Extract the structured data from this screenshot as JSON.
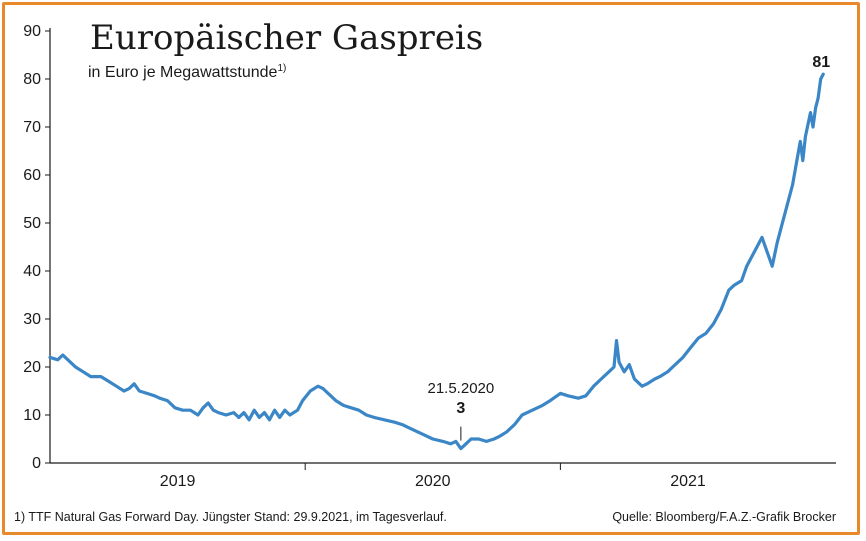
{
  "frame_color": "#e8892b",
  "chart_data": {
    "type": "line",
    "title": "Europäischer Gaspreis",
    "subtitle": "in Euro je Megawattstunde",
    "subtitle_footnote_mark": "1)",
    "ylabel": "",
    "xlabel": "",
    "ylim": [
      0,
      90
    ],
    "y_ticks": [
      "0",
      "10",
      "20",
      "30",
      "40",
      "50",
      "60",
      "70",
      "80",
      "90"
    ],
    "x_domain": [
      2018.67,
      2021.75
    ],
    "x_dividers": [
      2019.67,
      2020.67
    ],
    "x_labels": [
      {
        "label": "2019",
        "x": 2019.17
      },
      {
        "label": "2020",
        "x": 2020.17
      },
      {
        "label": "2021",
        "x": 2021.17
      }
    ],
    "line_color": "#3a86c6",
    "series": [
      {
        "name": "TTF Natural Gas Forward Day",
        "points": [
          [
            2018.67,
            22
          ],
          [
            2018.7,
            21.5
          ],
          [
            2018.72,
            22.5
          ],
          [
            2018.75,
            21
          ],
          [
            2018.77,
            20
          ],
          [
            2018.8,
            19
          ],
          [
            2018.83,
            18
          ],
          [
            2018.87,
            18
          ],
          [
            2018.9,
            17
          ],
          [
            2018.93,
            16
          ],
          [
            2018.96,
            15
          ],
          [
            2018.98,
            15.5
          ],
          [
            2019.0,
            16.5
          ],
          [
            2019.02,
            15
          ],
          [
            2019.05,
            14.5
          ],
          [
            2019.08,
            14
          ],
          [
            2019.1,
            13.5
          ],
          [
            2019.13,
            13
          ],
          [
            2019.16,
            11.5
          ],
          [
            2019.19,
            11
          ],
          [
            2019.22,
            11
          ],
          [
            2019.25,
            10
          ],
          [
            2019.27,
            11.5
          ],
          [
            2019.29,
            12.5
          ],
          [
            2019.31,
            11
          ],
          [
            2019.33,
            10.5
          ],
          [
            2019.36,
            10
          ],
          [
            2019.39,
            10.5
          ],
          [
            2019.41,
            9.5
          ],
          [
            2019.43,
            10.5
          ],
          [
            2019.45,
            9
          ],
          [
            2019.47,
            11
          ],
          [
            2019.49,
            9.5
          ],
          [
            2019.51,
            10.5
          ],
          [
            2019.53,
            9
          ],
          [
            2019.55,
            11
          ],
          [
            2019.57,
            9.5
          ],
          [
            2019.59,
            11
          ],
          [
            2019.61,
            10
          ],
          [
            2019.64,
            11
          ],
          [
            2019.66,
            13
          ],
          [
            2019.69,
            15
          ],
          [
            2019.72,
            16
          ],
          [
            2019.74,
            15.5
          ],
          [
            2019.77,
            14
          ],
          [
            2019.79,
            13
          ],
          [
            2019.82,
            12
          ],
          [
            2019.85,
            11.5
          ],
          [
            2019.88,
            11
          ],
          [
            2019.91,
            10
          ],
          [
            2019.94,
            9.5
          ],
          [
            2019.98,
            9
          ],
          [
            2020.02,
            8.5
          ],
          [
            2020.05,
            8
          ],
          [
            2020.09,
            7
          ],
          [
            2020.13,
            6
          ],
          [
            2020.17,
            5
          ],
          [
            2020.21,
            4.5
          ],
          [
            2020.24,
            4
          ],
          [
            2020.26,
            4.5
          ],
          [
            2020.28,
            3
          ],
          [
            2020.3,
            4
          ],
          [
            2020.32,
            5
          ],
          [
            2020.35,
            5
          ],
          [
            2020.38,
            4.5
          ],
          [
            2020.41,
            5
          ],
          [
            2020.43,
            5.5
          ],
          [
            2020.46,
            6.5
          ],
          [
            2020.49,
            8
          ],
          [
            2020.52,
            10
          ],
          [
            2020.56,
            11
          ],
          [
            2020.6,
            12
          ],
          [
            2020.63,
            13
          ],
          [
            2020.67,
            14.5
          ],
          [
            2020.7,
            14
          ],
          [
            2020.74,
            13.5
          ],
          [
            2020.77,
            14
          ],
          [
            2020.8,
            16
          ],
          [
            2020.83,
            17.5
          ],
          [
            2020.86,
            19
          ],
          [
            2020.88,
            20
          ],
          [
            2020.89,
            25.5
          ],
          [
            2020.9,
            21
          ],
          [
            2020.92,
            19
          ],
          [
            2020.94,
            20.5
          ],
          [
            2020.96,
            17.5
          ],
          [
            2020.99,
            16
          ],
          [
            2021.01,
            16.5
          ],
          [
            2021.04,
            17.5
          ],
          [
            2021.06,
            18
          ],
          [
            2021.09,
            19
          ],
          [
            2021.12,
            20.5
          ],
          [
            2021.15,
            22
          ],
          [
            2021.18,
            24
          ],
          [
            2021.21,
            26
          ],
          [
            2021.24,
            27
          ],
          [
            2021.27,
            29
          ],
          [
            2021.3,
            32
          ],
          [
            2021.33,
            36
          ],
          [
            2021.35,
            37
          ],
          [
            2021.38,
            38
          ],
          [
            2021.4,
            41
          ],
          [
            2021.42,
            43
          ],
          [
            2021.44,
            45
          ],
          [
            2021.46,
            47
          ],
          [
            2021.48,
            44
          ],
          [
            2021.5,
            41
          ],
          [
            2021.52,
            46
          ],
          [
            2021.54,
            50
          ],
          [
            2021.56,
            54
          ],
          [
            2021.58,
            58
          ],
          [
            2021.6,
            64
          ],
          [
            2021.61,
            67
          ],
          [
            2021.62,
            63
          ],
          [
            2021.63,
            68
          ],
          [
            2021.65,
            73
          ],
          [
            2021.66,
            70
          ],
          [
            2021.67,
            74
          ],
          [
            2021.68,
            76
          ],
          [
            2021.69,
            80
          ],
          [
            2021.7,
            81
          ]
        ]
      }
    ],
    "annotations": [
      {
        "date": "21.5.2020",
        "value_label": "3",
        "x": 2020.28,
        "y": 3
      },
      {
        "date": "",
        "value_label": "81",
        "x": 2021.7,
        "y": 81
      }
    ],
    "footnote": "1) TTF Natural Gas Forward Day. Jüngster Stand: 29.9.2021, im Tagesverlauf.",
    "source": "Quelle: Bloomberg/F.A.Z.-Grafik Brocker"
  }
}
